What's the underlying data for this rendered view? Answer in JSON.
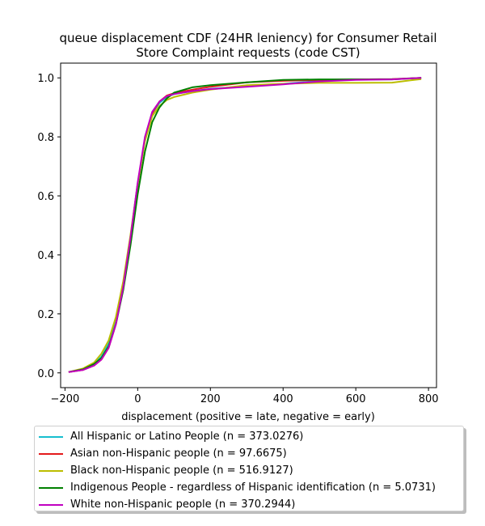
{
  "chart_data": {
    "type": "line",
    "title": "queue displacement CDF (24HR leniency) for Consumer Retail\nStore Complaint  requests (code CST)",
    "xlabel": "displacement (positive = late, negative = early)",
    "ylabel": "",
    "xlim": [
      -212,
      822
    ],
    "ylim": [
      -0.05,
      1.05
    ],
    "x_ticks": [
      -200,
      0,
      200,
      400,
      600,
      800
    ],
    "y_ticks": [
      0.0,
      0.2,
      0.4,
      0.6,
      0.8,
      1.0
    ],
    "x_tick_labels": [
      "−200",
      "0",
      "200",
      "400",
      "600",
      "800"
    ],
    "y_tick_labels": [
      "0.0",
      "0.2",
      "0.4",
      "0.6",
      "0.8",
      "1.0"
    ],
    "grid": false,
    "legend_position": "below",
    "series": [
      {
        "name": "All Hispanic or Latino People (n = 373.0276)",
        "color": "#17becf",
        "x": [
          -190,
          -150,
          -120,
          -100,
          -80,
          -60,
          -40,
          -20,
          0,
          20,
          40,
          60,
          80,
          100,
          150,
          200,
          300,
          400,
          500,
          600,
          700,
          780
        ],
        "y": [
          0.003,
          0.012,
          0.03,
          0.055,
          0.1,
          0.18,
          0.3,
          0.46,
          0.64,
          0.79,
          0.88,
          0.915,
          0.935,
          0.945,
          0.955,
          0.963,
          0.972,
          0.98,
          0.99,
          0.995,
          0.996,
          1.0
        ]
      },
      {
        "name": "Asian non-Hispanic people (n = 97.6675)",
        "color": "#e31a1c",
        "x": [
          -190,
          -150,
          -120,
          -100,
          -80,
          -60,
          -40,
          -20,
          0,
          20,
          40,
          60,
          80,
          100,
          150,
          200,
          300,
          400,
          500,
          600,
          700,
          780
        ],
        "y": [
          0.003,
          0.01,
          0.025,
          0.045,
          0.085,
          0.165,
          0.29,
          0.45,
          0.64,
          0.79,
          0.88,
          0.92,
          0.94,
          0.948,
          0.96,
          0.97,
          0.985,
          0.99,
          0.993,
          0.995,
          0.996,
          1.0
        ]
      },
      {
        "name": "Black non-Hispanic people (n = 516.9127)",
        "color": "#bcbd00",
        "x": [
          -190,
          -150,
          -120,
          -100,
          -80,
          -60,
          -40,
          -20,
          0,
          20,
          40,
          60,
          80,
          100,
          150,
          200,
          300,
          400,
          500,
          600,
          700,
          780
        ],
        "y": [
          0.003,
          0.015,
          0.035,
          0.065,
          0.11,
          0.19,
          0.31,
          0.465,
          0.64,
          0.785,
          0.87,
          0.905,
          0.925,
          0.935,
          0.95,
          0.96,
          0.975,
          0.98,
          0.983,
          0.983,
          0.984,
          0.996
        ]
      },
      {
        "name": "Indigenous People - regardless of Hispanic identification (n = 5.0731)",
        "color": "#008000",
        "x": [
          -190,
          -150,
          -120,
          -100,
          -80,
          -60,
          -40,
          -20,
          0,
          20,
          40,
          60,
          80,
          100,
          150,
          200,
          300,
          400,
          500,
          600,
          700,
          780
        ],
        "y": [
          0.003,
          0.012,
          0.03,
          0.05,
          0.09,
          0.165,
          0.28,
          0.43,
          0.605,
          0.75,
          0.85,
          0.9,
          0.93,
          0.95,
          0.968,
          0.975,
          0.985,
          0.993,
          0.995,
          0.995,
          0.995,
          1.0
        ]
      },
      {
        "name": "White non-Hispanic people (n = 370.2944)",
        "color": "#c000c0",
        "x": [
          -190,
          -150,
          -120,
          -100,
          -80,
          -60,
          -40,
          -20,
          0,
          20,
          40,
          60,
          80,
          100,
          150,
          200,
          300,
          400,
          500,
          600,
          700,
          780
        ],
        "y": [
          0.003,
          0.01,
          0.025,
          0.045,
          0.085,
          0.165,
          0.29,
          0.455,
          0.645,
          0.8,
          0.885,
          0.92,
          0.938,
          0.945,
          0.955,
          0.962,
          0.97,
          0.978,
          0.988,
          0.993,
          0.995,
          1.0
        ]
      }
    ]
  }
}
